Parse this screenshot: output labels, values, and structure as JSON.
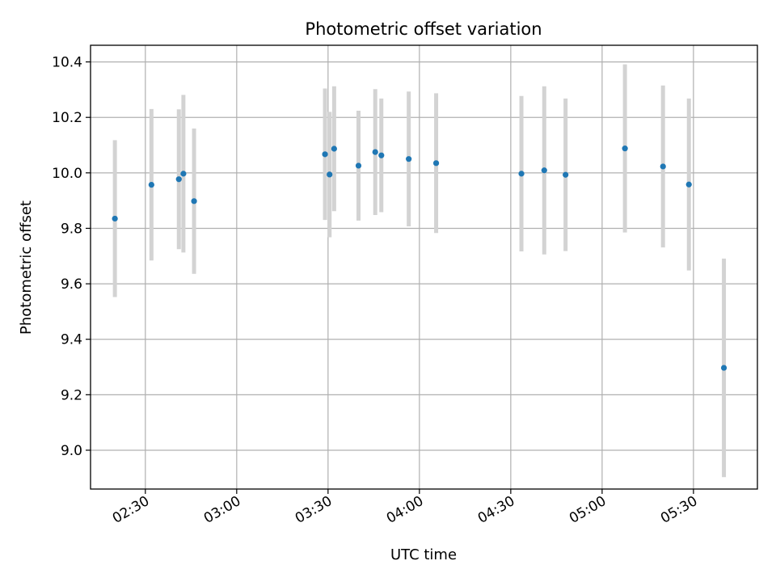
{
  "chart_data": {
    "type": "scatter",
    "title": "Photometric offset variation",
    "xlabel": "UTC time",
    "ylabel": "Photometric offset",
    "x_ticks": [
      "02:30",
      "03:00",
      "03:30",
      "04:00",
      "04:30",
      "05:00",
      "05:30"
    ],
    "y_ticks": [
      "9.0",
      "9.2",
      "9.4",
      "9.6",
      "9.8",
      "10.0",
      "10.2",
      "10.4"
    ],
    "xlim": [
      "02:12",
      "05:51"
    ],
    "ylim": [
      8.86,
      10.46
    ],
    "grid": true,
    "legend": "none",
    "series": [
      {
        "points": [
          {
            "x": "02:20:00",
            "y": 9.835,
            "err": 0.283
          },
          {
            "x": "02:32:00",
            "y": 9.957,
            "err": 0.273
          },
          {
            "x": "02:41:00",
            "y": 9.977,
            "err": 0.252
          },
          {
            "x": "02:42:30",
            "y": 9.997,
            "err": 0.284
          },
          {
            "x": "02:46:00",
            "y": 9.898,
            "err": 0.262
          },
          {
            "x": "03:29:00",
            "y": 10.067,
            "err": 0.237
          },
          {
            "x": "03:30:30",
            "y": 9.994,
            "err": 0.226
          },
          {
            "x": "03:32:00",
            "y": 10.087,
            "err": 0.225
          },
          {
            "x": "03:40:00",
            "y": 10.026,
            "err": 0.198
          },
          {
            "x": "03:45:30",
            "y": 10.075,
            "err": 0.227
          },
          {
            "x": "03:47:30",
            "y": 10.063,
            "err": 0.205
          },
          {
            "x": "03:56:30",
            "y": 10.05,
            "err": 0.243
          },
          {
            "x": "04:05:30",
            "y": 10.035,
            "err": 0.252
          },
          {
            "x": "04:33:30",
            "y": 9.997,
            "err": 0.28
          },
          {
            "x": "04:41:00",
            "y": 10.009,
            "err": 0.303
          },
          {
            "x": "04:48:00",
            "y": 9.993,
            "err": 0.275
          },
          {
            "x": "05:07:30",
            "y": 10.088,
            "err": 0.303
          },
          {
            "x": "05:20:00",
            "y": 10.023,
            "err": 0.292
          },
          {
            "x": "05:28:30",
            "y": 9.958,
            "err": 0.31
          },
          {
            "x": "05:40:00",
            "y": 9.297,
            "err": 0.394
          }
        ],
        "color": "#1f77b4",
        "error_color": "#d3d3d3"
      }
    ]
  }
}
